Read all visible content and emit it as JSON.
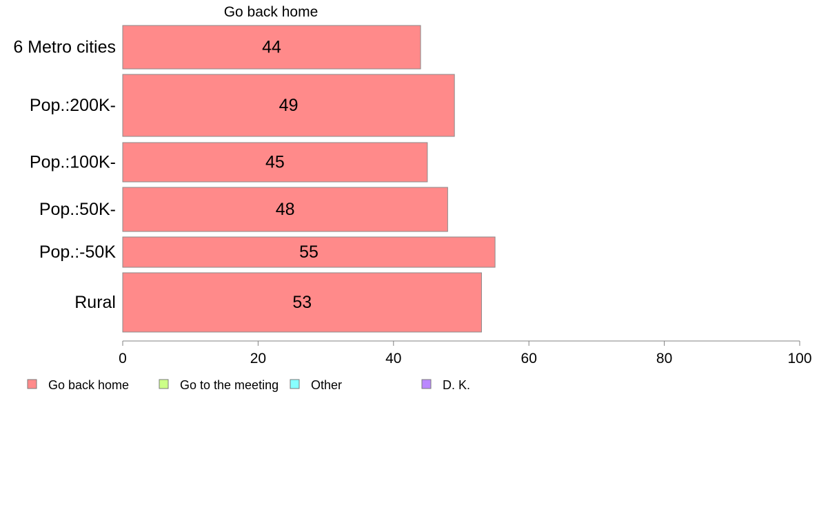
{
  "chart_data": {
    "type": "bar",
    "orientation": "horizontal",
    "series_title": "Go back home",
    "categories": [
      "6 Metro cities",
      "Pop.:200K-",
      "Pop.:100K-",
      "Pop.:50K-",
      "Pop.:-50K",
      "Rural"
    ],
    "series": [
      {
        "name": "Go back home",
        "values": [
          44,
          49,
          45,
          48,
          55,
          53
        ],
        "color": "#ff8a8a"
      }
    ],
    "xlim": [
      0,
      100
    ],
    "xticks": [
      0,
      20,
      40,
      60,
      80,
      100
    ],
    "grid": false,
    "legend": {
      "placement": "bottom-left",
      "items": [
        {
          "label": "Go back home",
          "color": "#ff8a8a"
        },
        {
          "label": "Go to the meeting",
          "color": "#ccff88"
        },
        {
          "label": "Other",
          "color": "#88ffff"
        },
        {
          "label": "D. K.",
          "color": "#bb88ff"
        }
      ]
    }
  }
}
